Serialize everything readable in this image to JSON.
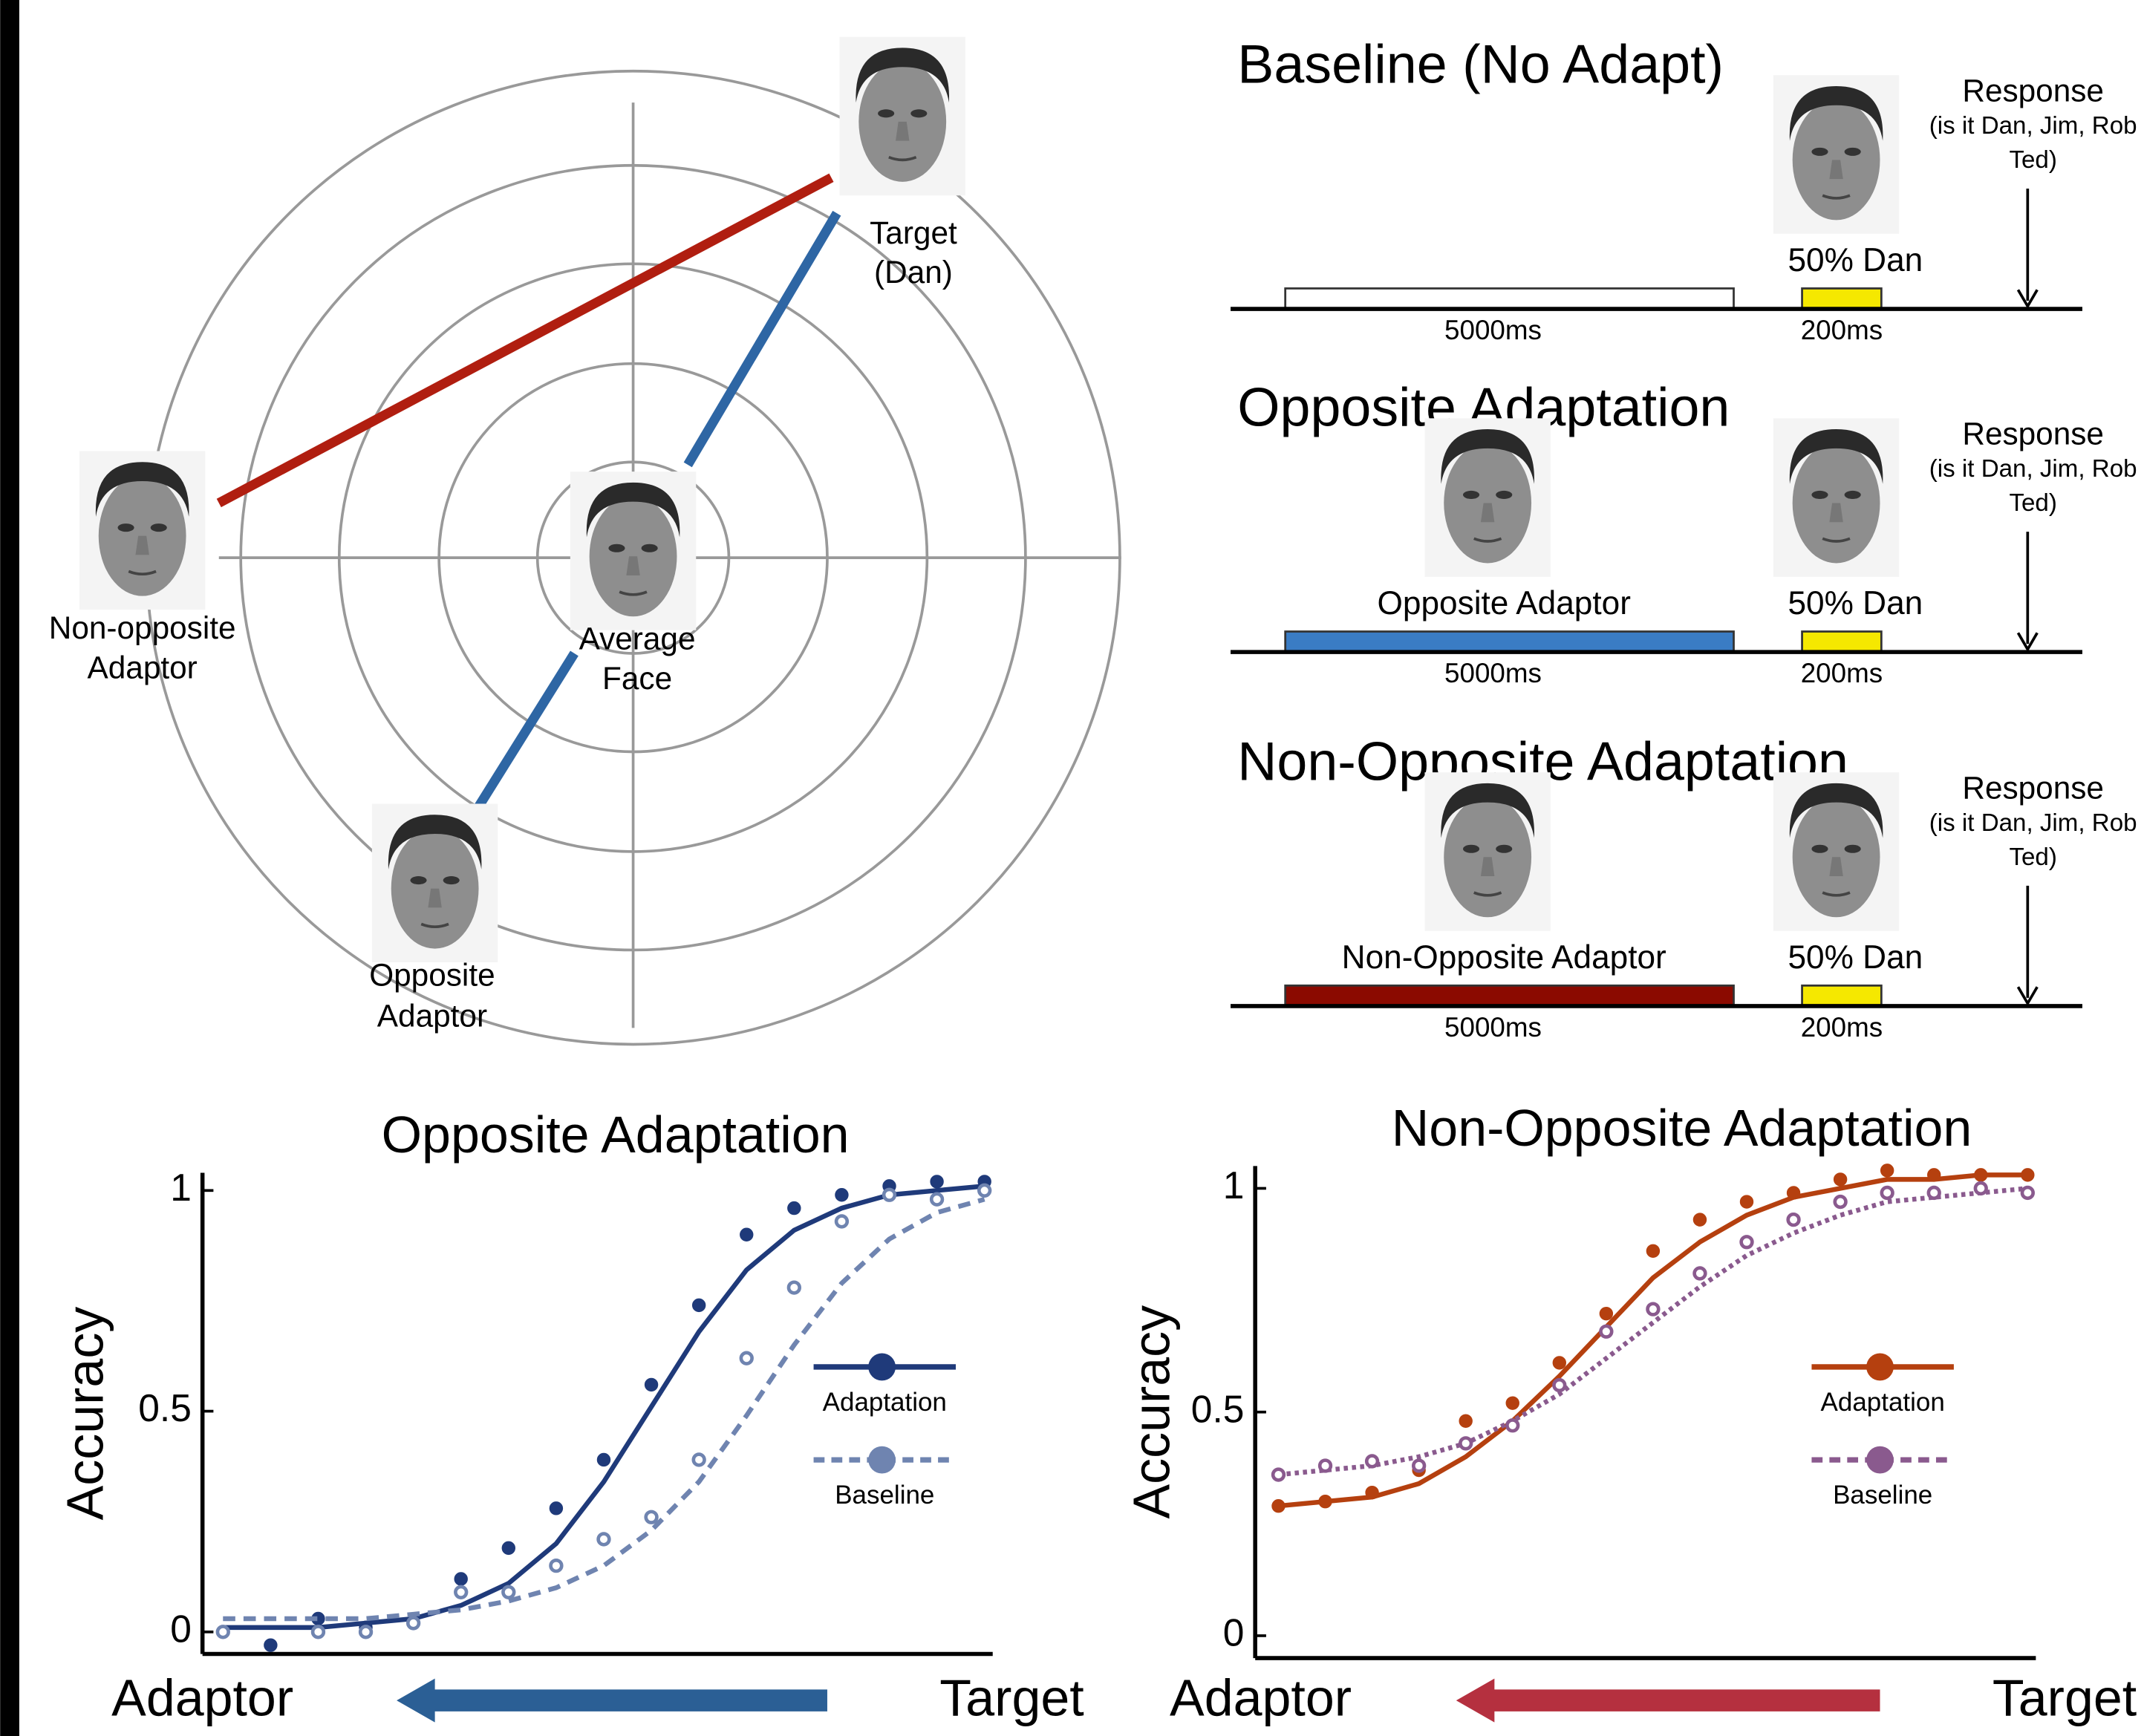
{
  "face_space": {
    "target": [
      "Target",
      "(Dan)"
    ],
    "non_opposite": [
      "Non-opposite",
      "Adaptor"
    ],
    "average": [
      "Average",
      "Face"
    ],
    "opposite": [
      "Opposite",
      "Adaptor"
    ]
  },
  "timelines": [
    {
      "title": "Baseline (No Adapt)",
      "test_label": "50% Dan",
      "response": "Response",
      "question": [
        "(is it Dan, Jim, Rob",
        "Ted)"
      ],
      "adapt_duration": "5000ms",
      "test_duration": "200ms",
      "adapt_color": "#ffffff",
      "test_color": "#f5e800"
    },
    {
      "title": "Opposite Adaptation",
      "adaptor_label": "Opposite Adaptor",
      "test_label": "50% Dan",
      "response": "Response",
      "question": [
        "(is it Dan, Jim, Rob",
        "Ted)"
      ],
      "adapt_duration": "5000ms",
      "test_duration": "200ms",
      "adapt_color": "#3a7cc4",
      "test_color": "#f5e800"
    },
    {
      "title": "Non-Opposite Adaptation",
      "adaptor_label": "Non-Opposite Adaptor",
      "test_label": "50% Dan",
      "response": "Response",
      "question": [
        "(is it Dan, Jim, Rob",
        "Ted)"
      ],
      "adapt_duration": "5000ms",
      "test_duration": "200ms",
      "adapt_color": "#8b0a00",
      "test_color": "#f5e800"
    }
  ],
  "chart_data": [
    {
      "type": "scatter",
      "title": "Opposite Adaptation",
      "ylabel": "Accuracy",
      "xlabel_left": "Adaptor",
      "xlabel_right": "Target",
      "arrow_color": "#2b5f95",
      "categories": [
        null,
        null,
        null,
        null,
        null,
        null,
        null,
        null,
        null,
        null,
        null,
        null,
        null,
        null,
        null,
        null,
        null
      ],
      "ylim": [
        -0.05,
        1.04
      ],
      "yticks": [
        0,
        0.5,
        1
      ],
      "series": [
        {
          "name": "Adaptation",
          "color": "#1f3a7a",
          "line_style": "solid",
          "marker": "filled",
          "values": [
            0,
            -0.03,
            0.03,
            0.01,
            0.02,
            0.12,
            0.19,
            0.28,
            0.39,
            0.56,
            0.74,
            0.9,
            0.96,
            0.99,
            1.01,
            1.02,
            1.02
          ],
          "fit": [
            0.01,
            0.01,
            0.01,
            0.02,
            0.03,
            0.06,
            0.11,
            0.2,
            0.34,
            0.51,
            0.68,
            0.82,
            0.91,
            0.96,
            0.99,
            1.0,
            1.01
          ]
        },
        {
          "name": "Baseline",
          "color": "#6f84b0",
          "line_style": "dashed",
          "marker": "open",
          "values": [
            0,
            null,
            0,
            0,
            0.02,
            0.09,
            0.09,
            0.15,
            0.21,
            0.26,
            0.39,
            0.62,
            0.78,
            0.93,
            0.99,
            0.98,
            1.0
          ],
          "fit": [
            0.03,
            0.03,
            0.03,
            0.03,
            0.04,
            0.05,
            0.07,
            0.1,
            0.15,
            0.23,
            0.34,
            0.49,
            0.65,
            0.79,
            0.89,
            0.95,
            0.98
          ]
        }
      ]
    },
    {
      "type": "scatter",
      "title": "Non-Opposite Adaptation",
      "ylabel": "Accuracy",
      "xlabel_left": "Adaptor",
      "xlabel_right": "Target",
      "arrow_color": "#b5303f",
      "categories": [
        null,
        null,
        null,
        null,
        null,
        null,
        null,
        null,
        null,
        null,
        null,
        null,
        null,
        null,
        null,
        null,
        null
      ],
      "ylim": [
        -0.05,
        1.05
      ],
      "yticks": [
        0,
        0.5,
        1
      ],
      "series": [
        {
          "name": "Adaptation",
          "color": "#b5400f",
          "line_style": "solid",
          "marker": "filled",
          "values": [
            0.29,
            0.3,
            0.32,
            0.37,
            0.48,
            0.52,
            0.61,
            0.72,
            0.86,
            0.93,
            0.97,
            0.99,
            1.02,
            1.04,
            1.03,
            1.03,
            1.03
          ],
          "fit": [
            0.29,
            0.3,
            0.31,
            0.34,
            0.4,
            0.48,
            0.58,
            0.69,
            0.8,
            0.88,
            0.94,
            0.98,
            1.0,
            1.02,
            1.02,
            1.03,
            1.03
          ]
        },
        {
          "name": "Baseline",
          "color": "#8a5a8e",
          "line_style": "dotted",
          "marker": "open",
          "values": [
            0.36,
            0.38,
            0.39,
            0.38,
            0.43,
            0.47,
            0.56,
            0.68,
            0.73,
            0.81,
            0.88,
            0.93,
            0.97,
            0.99,
            0.99,
            1.0,
            0.99
          ],
          "fit": [
            0.36,
            0.37,
            0.38,
            0.4,
            0.43,
            0.48,
            0.54,
            0.62,
            0.7,
            0.78,
            0.85,
            0.9,
            0.94,
            0.97,
            0.98,
            0.99,
            1.0
          ]
        }
      ]
    }
  ]
}
